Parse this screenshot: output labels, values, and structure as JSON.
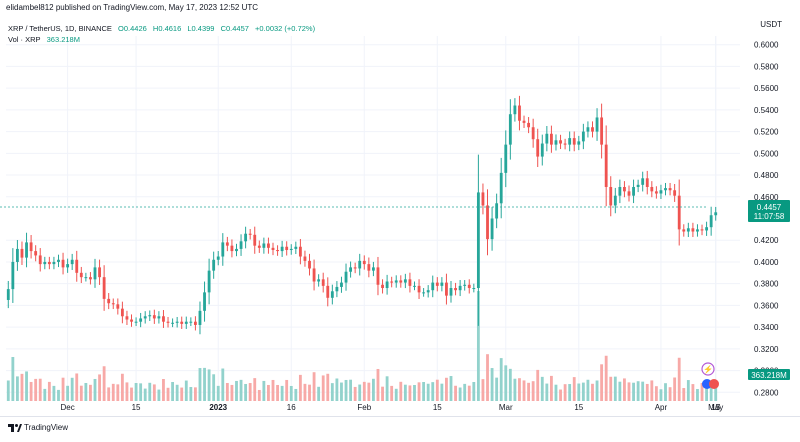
{
  "header": {
    "published": "elidambel812 published on TradingView.com, May 17, 2023 12:52 UTC",
    "currency": "USDT"
  },
  "legend": {
    "symbol": "XRP / TetherUS, 1D, BINANCE",
    "open": "O0.4426",
    "high": "H0.4616",
    "low": "L0.4399",
    "close": "C0.4457",
    "change": "+0.0032 (+0.72%)",
    "vol_label": "Vol · XRP",
    "vol_value": "363.218M"
  },
  "footer": {
    "brand": "TradingView"
  },
  "colors": {
    "up": "#26a69a",
    "down": "#ef5350",
    "up_vol": "#92d2cc",
    "down_vol": "#f7a9a7",
    "price_tag": "#089981"
  },
  "chart_data": {
    "type": "candlestick",
    "title": "XRP / TetherUS, 1D, BINANCE",
    "x_tick_labels": [
      "Dec",
      "15",
      "2023",
      "16",
      "Feb",
      "15",
      "Mar",
      "15",
      "Apr",
      "17",
      "May",
      "15"
    ],
    "y_tick_labels": [
      "0.6000",
      "0.5800",
      "0.5600",
      "0.5400",
      "0.5200",
      "0.5000",
      "0.4800",
      "0.4600",
      "0.4200",
      "0.4000",
      "0.3800",
      "0.3600",
      "0.3400",
      "0.3200",
      "0.3000",
      "0.2800"
    ],
    "ylim": [
      0.272,
      0.608
    ],
    "last_price": "0.4457",
    "countdown": "11:07:58",
    "volume_label": "363.218M",
    "grid": true,
    "close": [
      0.375,
      0.4,
      0.412,
      0.404,
      0.418,
      0.41,
      0.406,
      0.398,
      0.4,
      0.398,
      0.4,
      0.402,
      0.395,
      0.398,
      0.402,
      0.39,
      0.386,
      0.386,
      0.384,
      0.395,
      0.386,
      0.366,
      0.362,
      0.361,
      0.357,
      0.35,
      0.347,
      0.345,
      0.345,
      0.348,
      0.35,
      0.351,
      0.348,
      0.35,
      0.345,
      0.344,
      0.344,
      0.345,
      0.343,
      0.345,
      0.345,
      0.342,
      0.355,
      0.372,
      0.392,
      0.402,
      0.405,
      0.418,
      0.415,
      0.41,
      0.412,
      0.419,
      0.426,
      0.425,
      0.415,
      0.413,
      0.417,
      0.413,
      0.411,
      0.41,
      0.414,
      0.411,
      0.412,
      0.414,
      0.405,
      0.401,
      0.394,
      0.382,
      0.384,
      0.378,
      0.367,
      0.373,
      0.377,
      0.381,
      0.391,
      0.395,
      0.394,
      0.401,
      0.398,
      0.392,
      0.395,
      0.379,
      0.376,
      0.382,
      0.381,
      0.383,
      0.381,
      0.384,
      0.378,
      0.378,
      0.372,
      0.372,
      0.374,
      0.381,
      0.378,
      0.381,
      0.369,
      0.376,
      0.374,
      0.378,
      0.379,
      0.376,
      0.376,
      0.464,
      0.452,
      0.421,
      0.44,
      0.454,
      0.482,
      0.508,
      0.536,
      0.544,
      0.53,
      0.528,
      0.524,
      0.513,
      0.497,
      0.509,
      0.518,
      0.508,
      0.512,
      0.509,
      0.508,
      0.514,
      0.508,
      0.511,
      0.52,
      0.524,
      0.52,
      0.533,
      0.508,
      0.469,
      0.452,
      0.461,
      0.469,
      0.465,
      0.461,
      0.469,
      0.471,
      0.477,
      0.469,
      0.465,
      0.463,
      0.466,
      0.468,
      0.466,
      0.461,
      0.43,
      0.428,
      0.431,
      0.428,
      0.43,
      0.429,
      0.432,
      0.443,
      0.4457
    ]
  }
}
